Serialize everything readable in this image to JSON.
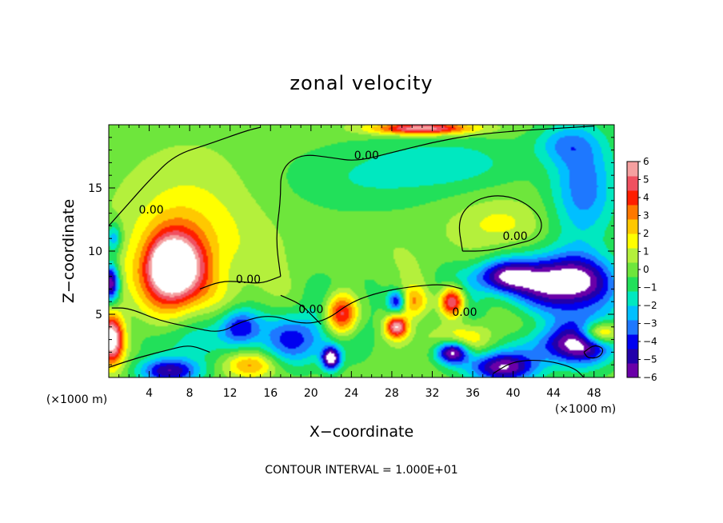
{
  "chart_data": {
    "type": "heatmap",
    "title": "zonal velocity",
    "xlabel": "X−coordinate",
    "ylabel": "Z−coordinate",
    "x_unit": "(×1000 m)",
    "y_unit": "(×1000 m)",
    "xlim": [
      0,
      50
    ],
    "ylim": [
      0,
      20
    ],
    "x_ticks": [
      4,
      8,
      12,
      16,
      20,
      24,
      28,
      32,
      36,
      40,
      44,
      48
    ],
    "x_tick_labels": [
      "4",
      "8",
      "12",
      "16",
      "20",
      "24",
      "28",
      "32",
      "36",
      "40",
      "44",
      "48"
    ],
    "y_ticks": [
      5,
      10,
      15
    ],
    "y_tick_labels": [
      "5",
      "10",
      "15"
    ],
    "colorbar": {
      "min": -6,
      "max": 6,
      "tick_values": [
        6,
        5,
        4,
        3,
        2,
        1,
        0,
        -1,
        -2,
        -3,
        -4,
        -5,
        -6
      ],
      "tick_labels": [
        "6",
        "5",
        "4",
        "3",
        "2",
        "1",
        "0",
        "−1",
        "−2",
        "−3",
        "−4",
        "−5",
        "−6"
      ],
      "colors": [
        "#6a00a8",
        "#2200aa",
        "#0000f0",
        "#1e78ff",
        "#00bfff",
        "#00e8c0",
        "#22e05a",
        "#6ee63c",
        "#b4f03c",
        "#ffff00",
        "#ffc800",
        "#ff7800",
        "#ff1e00",
        "#f05060",
        "#f5a0a0"
      ]
    },
    "contour_label": "0.00",
    "contour_label_positions": [
      [
        4.2,
        13.3
      ],
      [
        25.5,
        17.6
      ],
      [
        13.8,
        7.8
      ],
      [
        20,
        5.4
      ],
      [
        40.2,
        11.2
      ],
      [
        35.2,
        5.2
      ]
    ],
    "contour_interval_text": "CONTOUR INTERVAL = 1.000E+01",
    "grid": false,
    "legend": "colorbar-right",
    "features": [
      {
        "x": 20,
        "y": 9,
        "sx": 26,
        "sy": 8,
        "v": 0.4
      },
      {
        "x": 8,
        "y": 11.5,
        "sx": 6,
        "sy": 5.5,
        "v": 1.6
      },
      {
        "x": 6.5,
        "y": 8.5,
        "sx": 3,
        "sy": 3,
        "v": 7
      },
      {
        "x": 6,
        "y": 8.8,
        "sx": 1.6,
        "sy": 1.6,
        "v": 4
      },
      {
        "x": 25,
        "y": 15.5,
        "sx": 9,
        "sy": 3,
        "v": -1.3
      },
      {
        "x": 34,
        "y": 17,
        "sx": 7,
        "sy": 2,
        "v": -1.6
      },
      {
        "x": 47,
        "y": 15,
        "sx": 3.2,
        "sy": 4.5,
        "v": -3.4
      },
      {
        "x": 45,
        "y": 18.5,
        "sx": 3,
        "sy": 1.5,
        "v": -2
      },
      {
        "x": 31,
        "y": 19.7,
        "sx": 5,
        "sy": 0.5,
        "v": 6
      },
      {
        "x": 38.5,
        "y": 12.2,
        "sx": 4,
        "sy": 1.8,
        "v": 1.3
      },
      {
        "x": 45,
        "y": 7.5,
        "sx": 5,
        "sy": 2.2,
        "v": -7.5
      },
      {
        "x": 39,
        "y": 8,
        "sx": 3,
        "sy": 1.3,
        "v": -5
      },
      {
        "x": 47,
        "y": 3,
        "sx": 3,
        "sy": 2,
        "v": -5.5
      },
      {
        "x": 48.5,
        "y": 3.5,
        "sx": 2,
        "sy": 0.9,
        "v": 5.5
      },
      {
        "x": 44,
        "y": 2.5,
        "sx": 5,
        "sy": 1.3,
        "v": -2.5
      },
      {
        "x": 39,
        "y": 0.8,
        "sx": 3.5,
        "sy": 1.2,
        "v": -6
      },
      {
        "x": 35,
        "y": 3,
        "sx": 3,
        "sy": 1.3,
        "v": 2.5
      },
      {
        "x": 34,
        "y": 2,
        "sx": 1.6,
        "sy": 0.9,
        "v": -7
      },
      {
        "x": 34,
        "y": 6,
        "sx": 1.3,
        "sy": 1.3,
        "v": 8
      },
      {
        "x": 34,
        "y": 6,
        "sx": 2.3,
        "sy": 2.3,
        "v": -3
      },
      {
        "x": 23,
        "y": 5,
        "sx": 1.8,
        "sy": 1.8,
        "v": 8
      },
      {
        "x": 23,
        "y": 5,
        "sx": 3.3,
        "sy": 3,
        "v": -3.5
      },
      {
        "x": 22,
        "y": 1.5,
        "sx": 0.9,
        "sy": 0.9,
        "v": -6.5
      },
      {
        "x": 28.5,
        "y": 4,
        "sx": 1.1,
        "sy": 0.9,
        "v": 6
      },
      {
        "x": 28.5,
        "y": 6,
        "sx": 0.9,
        "sy": 0.9,
        "v": -5
      },
      {
        "x": 30,
        "y": 6,
        "sx": 1.6,
        "sy": 1.2,
        "v": 3
      },
      {
        "x": 18,
        "y": 3,
        "sx": 3,
        "sy": 2,
        "v": -4
      },
      {
        "x": 13,
        "y": 4,
        "sx": 2,
        "sy": 1.5,
        "v": -4.5
      },
      {
        "x": 14,
        "y": 1,
        "sx": 2.5,
        "sy": 1,
        "v": 3
      },
      {
        "x": 8,
        "y": 3,
        "sx": 4,
        "sy": 2,
        "v": -2
      },
      {
        "x": 6,
        "y": 0.5,
        "sx": 3,
        "sy": 1,
        "v": -5
      },
      {
        "x": 0.3,
        "y": 3,
        "sx": 1.2,
        "sy": 2,
        "v": 7
      },
      {
        "x": 0.2,
        "y": 7.5,
        "sx": 0.8,
        "sy": 1.5,
        "v": -6
      },
      {
        "x": 0.5,
        "y": 11,
        "sx": 0.8,
        "sy": 1.2,
        "v": -3
      }
    ],
    "contours": [
      [
        [
          0.3,
          5.5
        ],
        [
          2,
          5.5
        ],
        [
          5,
          4.5
        ],
        [
          8,
          4
        ],
        [
          11,
          3.5
        ],
        [
          13,
          4.4
        ],
        [
          16,
          5
        ],
        [
          19,
          4.2
        ],
        [
          21.5,
          4.5
        ],
        [
          24,
          6
        ],
        [
          27,
          6.8
        ],
        [
          30,
          7.2
        ],
        [
          33,
          7.4
        ],
        [
          35,
          7
        ]
      ],
      [
        [
          0,
          12
        ],
        [
          2,
          13.8
        ],
        [
          4,
          15.6
        ],
        [
          6.5,
          17.6
        ],
        [
          10,
          18.5
        ],
        [
          13.5,
          19.5
        ],
        [
          15,
          19.8
        ]
      ],
      [
        [
          17,
          8
        ],
        [
          16.5,
          11
        ],
        [
          17,
          14
        ],
        [
          17,
          16.5
        ],
        [
          19,
          17.7
        ],
        [
          22,
          17.4
        ],
        [
          24.5,
          17.1
        ],
        [
          28,
          17.8
        ],
        [
          32,
          18.6
        ],
        [
          36,
          19.2
        ],
        [
          40,
          19.5
        ],
        [
          44,
          19.7
        ],
        [
          48,
          19.9
        ]
      ],
      [
        [
          35,
          10
        ],
        [
          34.5,
          12.5
        ],
        [
          36,
          14
        ],
        [
          38.5,
          14.5
        ],
        [
          41,
          14
        ],
        [
          43,
          12.5
        ],
        [
          42.5,
          11
        ],
        [
          40,
          10.5
        ],
        [
          37.5,
          10
        ],
        [
          35,
          10
        ]
      ],
      [
        [
          9,
          7
        ],
        [
          11,
          7.6
        ],
        [
          13,
          7.6
        ],
        [
          15,
          7.4
        ],
        [
          17,
          8
        ]
      ],
      [
        [
          17,
          6.5
        ],
        [
          19,
          5.8
        ],
        [
          20,
          5
        ],
        [
          21,
          4.2
        ]
      ],
      [
        [
          38,
          0.3
        ],
        [
          40,
          1.3
        ],
        [
          43,
          1.4
        ],
        [
          46,
          0.8
        ],
        [
          47,
          0
        ]
      ],
      [
        [
          0,
          0.8
        ],
        [
          3,
          1.6
        ],
        [
          6,
          2.2
        ],
        [
          8,
          2.6
        ],
        [
          10,
          2
        ]
      ],
      [
        [
          47,
          2
        ],
        [
          48,
          2.6
        ],
        [
          49,
          2.3
        ],
        [
          48.6,
          1.6
        ],
        [
          47.4,
          1.5
        ],
        [
          47,
          2
        ]
      ]
    ]
  }
}
